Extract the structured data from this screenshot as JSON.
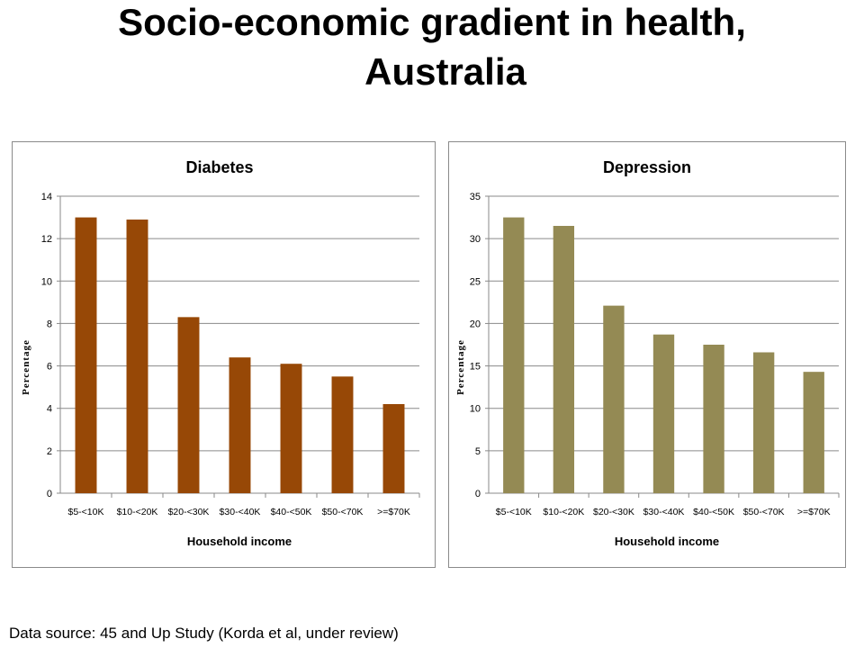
{
  "slide": {
    "title_line1": "Socio-economic gradient in health,",
    "title_line2": "Australia",
    "footnote": "Data source: 45 and Up Study (Korda et al, under review)"
  },
  "chart_data": [
    {
      "type": "bar",
      "title": "Diabetes",
      "xlabel": "Household income",
      "ylabel": "Percentage",
      "categories": [
        "$5-<10K",
        "$10-<20K",
        "$20-<30K",
        "$30-<40K",
        "$40-<50K",
        "$50-<70K",
        ">=$70K"
      ],
      "values": [
        13.0,
        12.9,
        8.3,
        6.4,
        6.1,
        5.5,
        4.2
      ],
      "ylim": [
        0,
        14
      ],
      "yticks": [
        "0",
        "2",
        "4",
        "6",
        "8",
        "10",
        "12",
        "14"
      ],
      "grid": true,
      "color": "#974806"
    },
    {
      "type": "bar",
      "title": "Depression",
      "xlabel": "Household income",
      "ylabel": "Percentage",
      "categories": [
        "$5-<10K",
        "$10-<20K",
        "$20-<30K",
        "$30-<40K",
        "$40-<50K",
        "$50-<70K",
        ">=$70K"
      ],
      "values": [
        32.5,
        31.5,
        22.1,
        18.7,
        17.5,
        16.6,
        14.3
      ],
      "ylim": [
        0,
        35
      ],
      "yticks": [
        "0",
        "5",
        "10",
        "15",
        "20",
        "25",
        "30",
        "35"
      ],
      "grid": true,
      "color": "#948A54"
    }
  ]
}
